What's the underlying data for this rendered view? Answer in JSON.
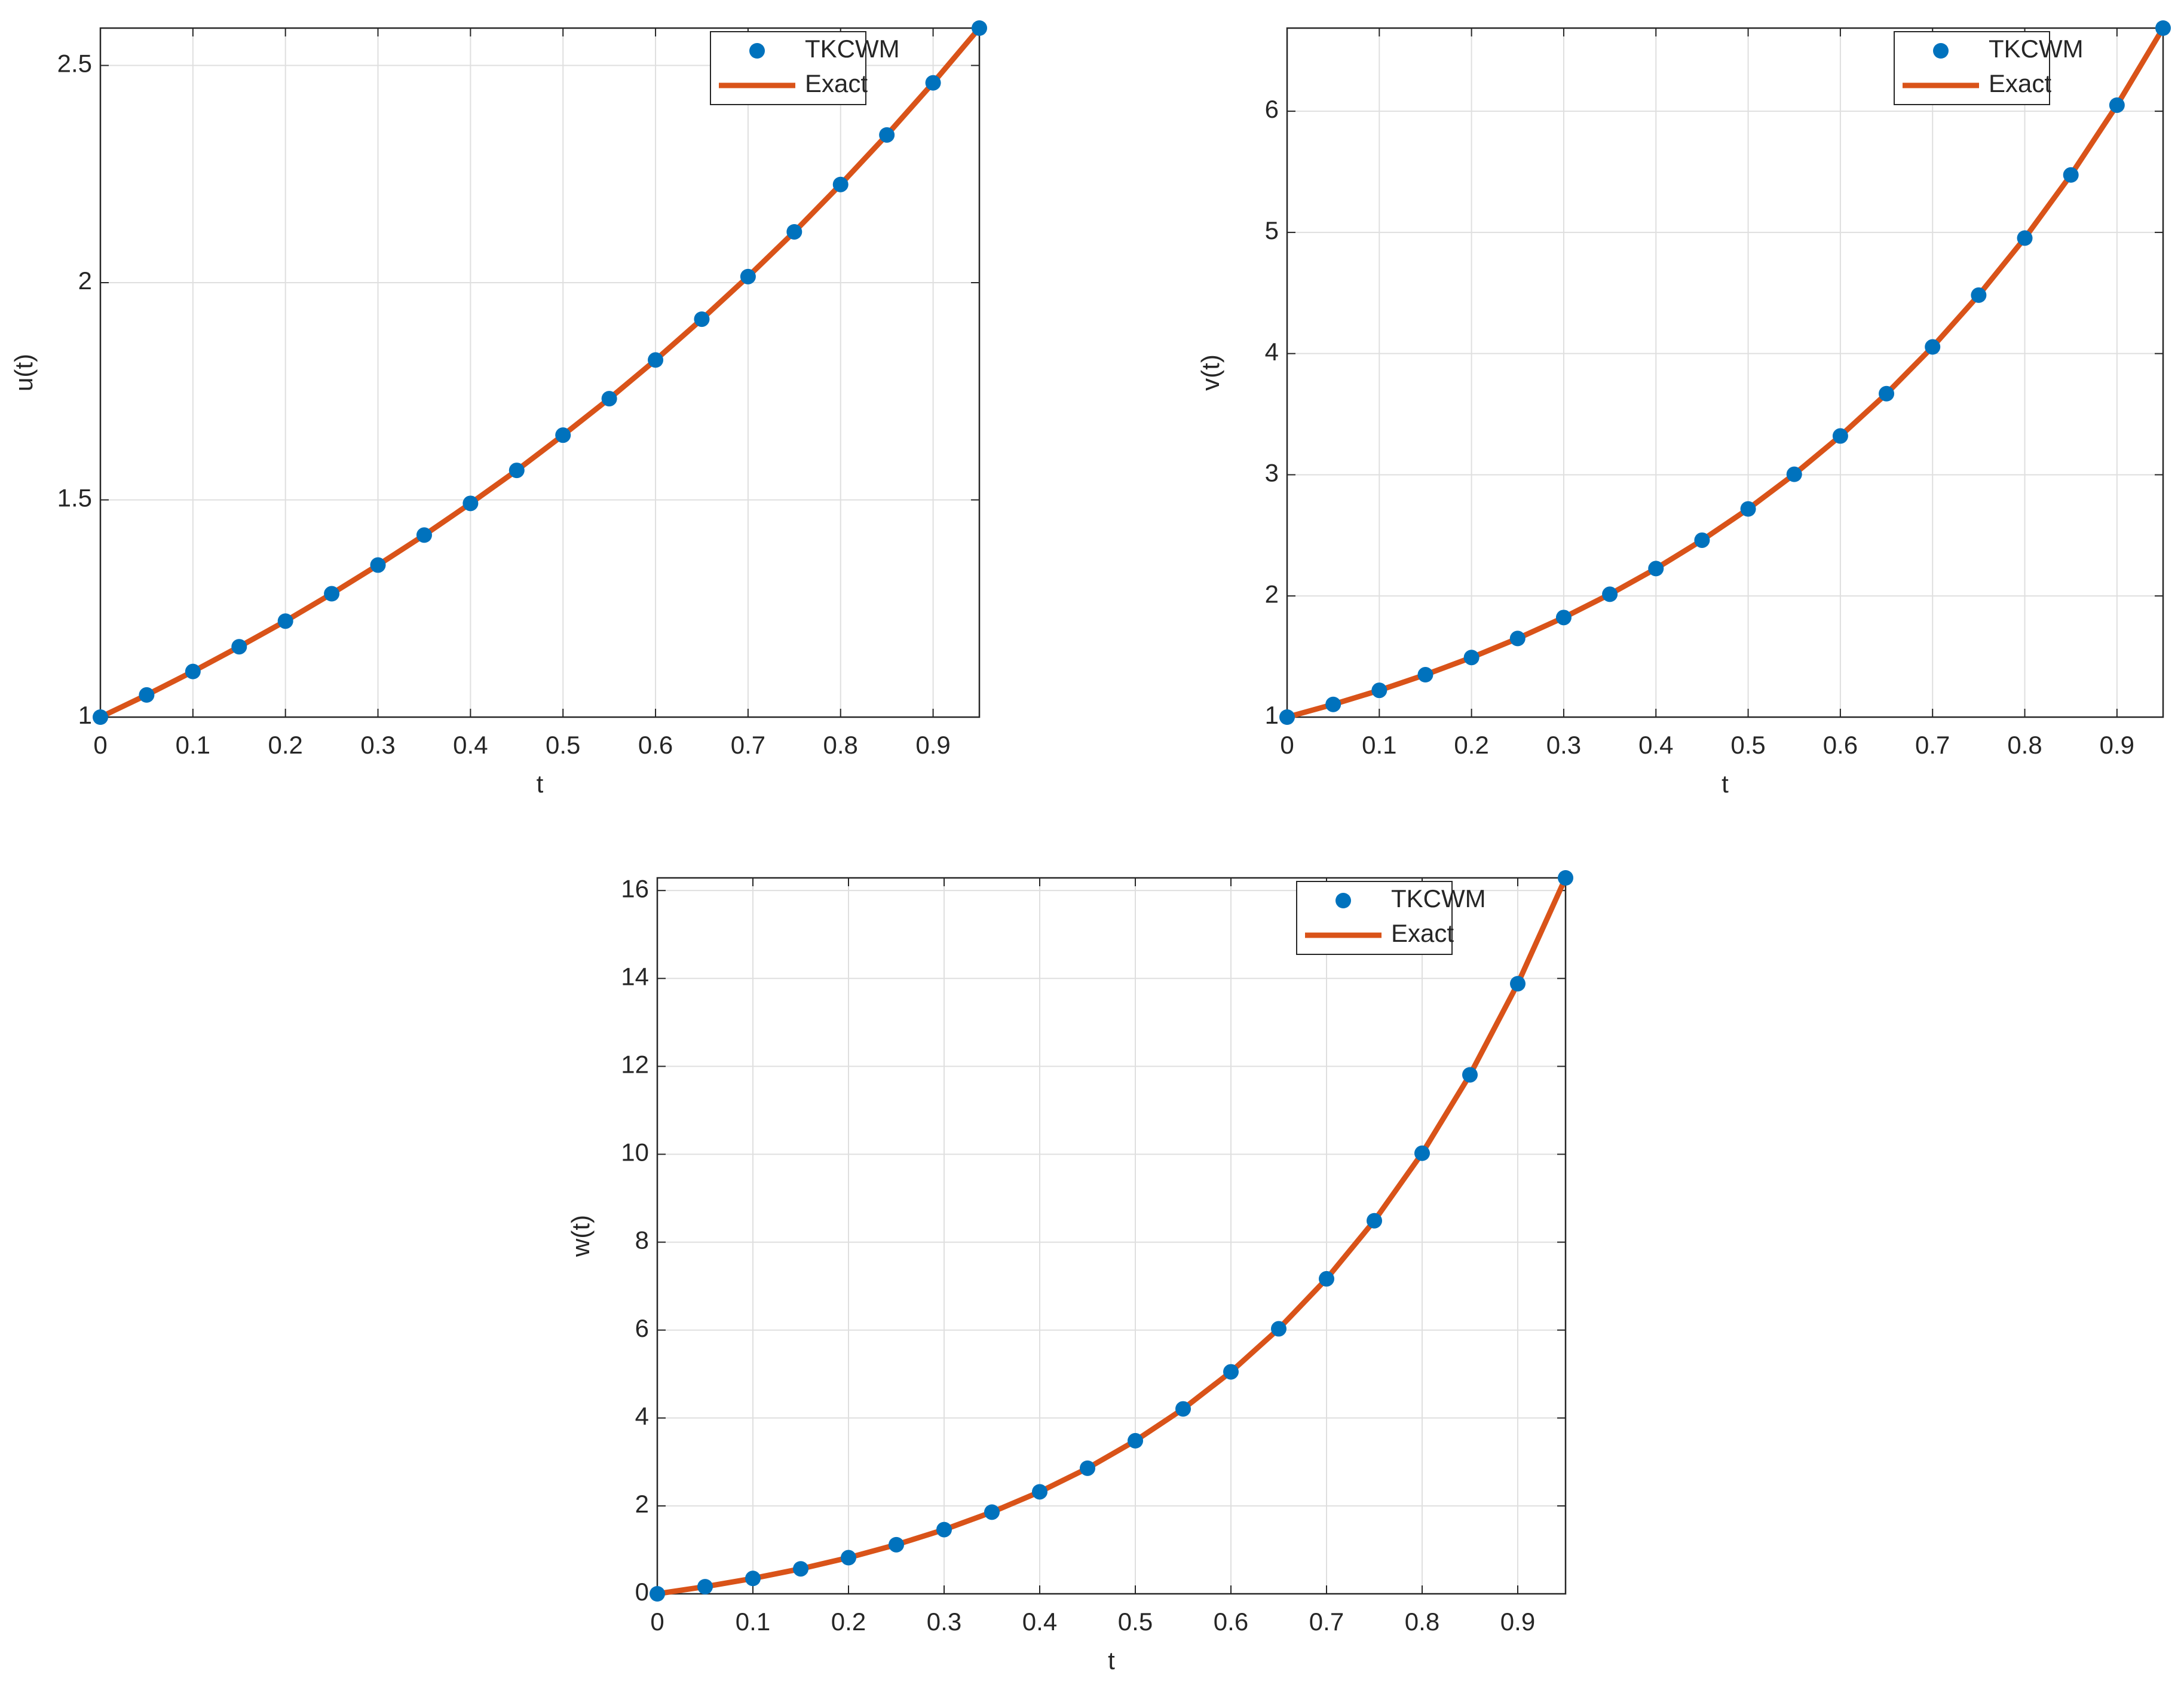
{
  "chart_data": [
    {
      "type": "line",
      "xlabel": "t",
      "ylabel": "u(t)",
      "grid": true,
      "legend": "northeast",
      "x": [
        0,
        0.05,
        0.1,
        0.15,
        0.2,
        0.25,
        0.3,
        0.35,
        0.4,
        0.45,
        0.5,
        0.55,
        0.6,
        0.65,
        0.7,
        0.75,
        0.8,
        0.85,
        0.9,
        0.95
      ],
      "xlim": [
        0,
        0.95
      ],
      "xticks": [
        0,
        0.1,
        0.2,
        0.3,
        0.4,
        0.5,
        0.6,
        0.7,
        0.8,
        0.9
      ],
      "ylim": [
        1,
        2.586
      ],
      "yticks": [
        1,
        1.5,
        2,
        2.5
      ],
      "series": [
        {
          "name": "TKCWM",
          "color": "#0072BD",
          "style": "marker",
          "values": [
            1,
            1.051,
            1.105,
            1.162,
            1.221,
            1.284,
            1.35,
            1.419,
            1.492,
            1.568,
            1.649,
            1.733,
            1.822,
            1.916,
            2.014,
            2.117,
            2.226,
            2.34,
            2.46,
            2.586
          ]
        },
        {
          "name": "Exact",
          "color": "#D95319",
          "style": "line",
          "values": [
            1,
            1.051,
            1.105,
            1.162,
            1.221,
            1.284,
            1.35,
            1.419,
            1.492,
            1.568,
            1.649,
            1.733,
            1.822,
            1.916,
            2.014,
            2.117,
            2.226,
            2.34,
            2.46,
            2.586
          ]
        }
      ]
    },
    {
      "type": "line",
      "xlabel": "t",
      "ylabel": "v(t)",
      "grid": true,
      "legend": "northeast",
      "x": [
        0,
        0.05,
        0.1,
        0.15,
        0.2,
        0.25,
        0.3,
        0.35,
        0.4,
        0.45,
        0.5,
        0.55,
        0.6,
        0.65,
        0.7,
        0.75,
        0.8,
        0.85,
        0.9,
        0.95
      ],
      "xlim": [
        0,
        0.95
      ],
      "xticks": [
        0,
        0.1,
        0.2,
        0.3,
        0.4,
        0.5,
        0.6,
        0.7,
        0.8,
        0.9
      ],
      "ylim": [
        1,
        6.686
      ],
      "yticks": [
        1,
        2,
        3,
        4,
        5,
        6
      ],
      "series": [
        {
          "name": "TKCWM",
          "color": "#0072BD",
          "style": "marker",
          "values": [
            1,
            1.105,
            1.221,
            1.35,
            1.492,
            1.649,
            1.822,
            2.014,
            2.226,
            2.46,
            2.718,
            3.004,
            3.32,
            3.669,
            4.055,
            4.482,
            4.953,
            5.474,
            6.05,
            6.686
          ]
        },
        {
          "name": "Exact",
          "color": "#D95319",
          "style": "line",
          "values": [
            1,
            1.105,
            1.221,
            1.35,
            1.492,
            1.649,
            1.822,
            2.014,
            2.226,
            2.46,
            2.718,
            3.004,
            3.32,
            3.669,
            4.055,
            4.482,
            4.953,
            5.474,
            6.05,
            6.686
          ]
        }
      ]
    },
    {
      "type": "line",
      "xlabel": "t",
      "ylabel": "w(t)",
      "grid": true,
      "legend": "northeast",
      "x": [
        0,
        0.05,
        0.1,
        0.15,
        0.2,
        0.25,
        0.3,
        0.35,
        0.4,
        0.45,
        0.5,
        0.55,
        0.6,
        0.65,
        0.7,
        0.75,
        0.8,
        0.85,
        0.9,
        0.95
      ],
      "xlim": [
        0,
        0.95
      ],
      "xticks": [
        0,
        0.1,
        0.2,
        0.3,
        0.4,
        0.5,
        0.6,
        0.7,
        0.8,
        0.9
      ],
      "ylim": [
        0,
        16.288
      ],
      "yticks": [
        0,
        2,
        4,
        6,
        8,
        10,
        12,
        14,
        16
      ],
      "series": [
        {
          "name": "TKCWM",
          "color": "#0072BD",
          "style": "marker",
          "values": [
            0,
            0.162,
            0.35,
            0.568,
            0.822,
            1.117,
            1.46,
            1.858,
            2.32,
            2.857,
            3.482,
            4.207,
            5.05,
            6.029,
            7.166,
            8.488,
            10.023,
            11.807,
            13.88,
            16.288
          ]
        },
        {
          "name": "Exact",
          "color": "#D95319",
          "style": "line",
          "values": [
            0,
            0.162,
            0.35,
            0.568,
            0.822,
            1.117,
            1.46,
            1.858,
            2.32,
            2.857,
            3.482,
            4.207,
            5.05,
            6.029,
            7.166,
            8.488,
            10.023,
            11.807,
            13.88,
            16.288
          ]
        }
      ]
    }
  ]
}
